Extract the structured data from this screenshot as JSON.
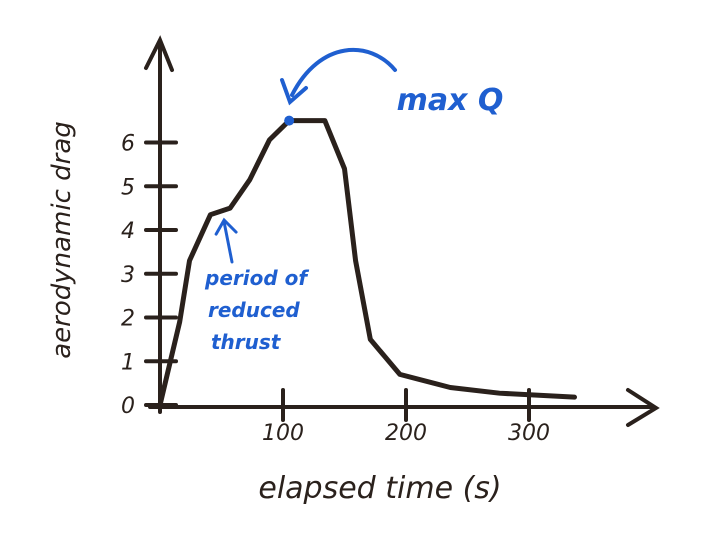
{
  "chart_data": {
    "type": "line",
    "xlabel": "elapsed time (s)",
    "ylabel": "aerodynamic drag",
    "x": [
      0,
      16,
      24,
      41,
      57,
      73,
      89,
      105,
      134,
      150,
      159,
      171,
      195,
      236,
      276,
      337
    ],
    "series": [
      {
        "color": "#2a211c",
        "values": [
          0,
          1.9,
          3.3,
          4.35,
          4.5,
          5.15,
          6.06,
          6.5,
          6.5,
          5.4,
          3.3,
          1.5,
          0.7,
          0.4,
          0.27,
          0.18
        ]
      }
    ],
    "xlim": [
      0,
      400
    ],
    "ylim": [
      0,
      8
    ],
    "xticks": [
      100,
      200,
      300
    ],
    "yticks": [
      0,
      1,
      2,
      3,
      4,
      5,
      6
    ],
    "annotations": [
      {
        "text": "max Q",
        "color": "#1f5fd0",
        "point": 7
      },
      {
        "text": "period of reduced thrust",
        "color": "#1f5fd0",
        "point": 4
      }
    ]
  }
}
